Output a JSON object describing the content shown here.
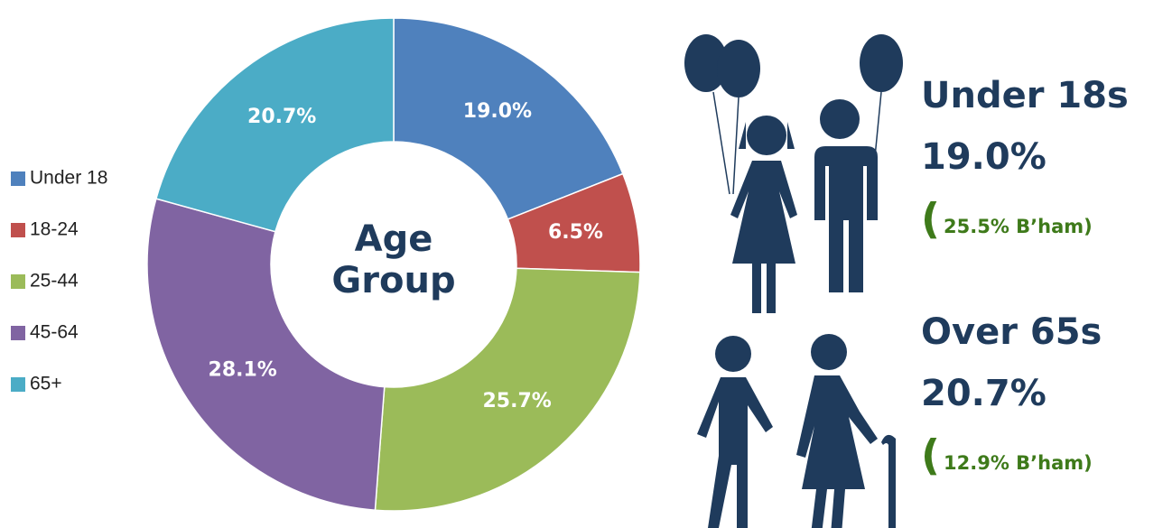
{
  "chart_data": {
    "type": "donut",
    "center_label": [
      "Age",
      "Group"
    ],
    "categories": [
      "Under 18",
      "18-24",
      "25-44",
      "45-64",
      "65+"
    ],
    "values": [
      19.0,
      6.5,
      25.7,
      28.1,
      20.7
    ],
    "value_labels": [
      "19.0%",
      "6.5%",
      "25.7%",
      "28.1%",
      "20.7%"
    ],
    "colors": [
      "#4f81bd",
      "#c0504d",
      "#9bbb59",
      "#8064a2",
      "#4bacc6"
    ],
    "legend": "left"
  },
  "highlights": [
    {
      "title": "Under 18s",
      "value": "19.0%",
      "open": "(",
      "comparison": "25.5% B’ham)"
    },
    {
      "title": "Over 65s",
      "value": "20.7%",
      "open": "(",
      "comparison": "12.9% B’ham)"
    }
  ]
}
